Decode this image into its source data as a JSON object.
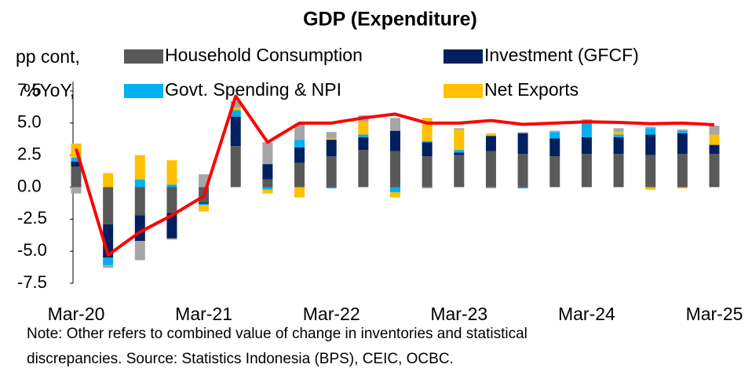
{
  "chart_data": {
    "type": "stacked_bar_line",
    "title": "GDP (Expenditure)",
    "y_label": [
      "pp cont,",
      "%YoY,"
    ],
    "note": [
      "Note: Other refers to combined value of change in inventories and statistical",
      "discrepancies. Source: Statistics Indonesia (BPS), CEIC, OCBC."
    ],
    "categories": [
      "Mar-20",
      null,
      null,
      null,
      "Mar-21",
      null,
      null,
      null,
      "Mar-22",
      null,
      null,
      null,
      "Mar-23",
      null,
      null,
      null,
      "Mar-24",
      null,
      null,
      null,
      "Mar-25"
    ],
    "series": [
      {
        "name": "Household Consumption",
        "color": "#595959",
        "values": [
          1.6,
          -2.9,
          -2.2,
          -2.0,
          -1.2,
          3.2,
          0.6,
          1.9,
          2.4,
          2.9,
          2.8,
          2.4,
          2.5,
          2.8,
          2.6,
          2.4,
          2.6,
          2.6,
          2.5,
          2.6,
          2.6
        ]
      },
      {
        "name": "Investment (GFCF)",
        "color": "#002060",
        "values": [
          0.4,
          -2.6,
          -2.0,
          -2.0,
          -0.1,
          2.3,
          1.2,
          1.2,
          1.3,
          1.0,
          1.6,
          1.1,
          0.2,
          1.2,
          1.6,
          1.4,
          1.3,
          1.3,
          1.6,
          1.6,
          0.7
        ]
      },
      {
        "name": "Govt. Spending & NPI",
        "color": "#00b0f0",
        "values": [
          0.3,
          -0.6,
          0.6,
          0.2,
          -0.1,
          0.5,
          -0.2,
          0.6,
          -0.1,
          0.2,
          -0.4,
          0.1,
          0.2,
          0.0,
          -0.1,
          0.5,
          1.1,
          0.2,
          0.5,
          0.2,
          0.0
        ]
      },
      {
        "name": "Net Exports",
        "color": "#ffc000",
        "values": [
          1.1,
          1.1,
          1.9,
          1.9,
          -0.5,
          0.2,
          -0.3,
          -0.8,
          0.1,
          1.0,
          -0.4,
          1.8,
          1.6,
          0.2,
          0.0,
          0.0,
          0.2,
          0.2,
          -0.2,
          -0.1,
          0.8
        ]
      },
      {
        "color": "#a6a6a6",
        "values": [
          -0.5,
          -0.2,
          -1.5,
          -0.1,
          1.0,
          0.5,
          1.7,
          1.2,
          0.5,
          0.5,
          1.0,
          -0.1,
          0.1,
          -0.1,
          0.1,
          0.1,
          0.1,
          0.3,
          0.1,
          0.1,
          0.7
        ]
      }
    ],
    "line": {
      "color": "#ff0000",
      "values": [
        3.0,
        -5.3,
        -3.5,
        -2.2,
        -0.7,
        7.1,
        3.5,
        5.0,
        5.0,
        5.4,
        5.7,
        5.0,
        5.0,
        5.2,
        4.9,
        5.0,
        5.1,
        5.05,
        4.95,
        5.0,
        4.87
      ]
    },
    "ylim": [
      -7.5,
      7.5
    ],
    "yticks": [
      7.5,
      {
        "value": 5,
        "label": "5.0"
      },
      2.5,
      {
        "value": 0,
        "label": "0.0"
      },
      -2.5,
      {
        "value": -5,
        "label": "-5.0"
      },
      -7.5
    ]
  }
}
